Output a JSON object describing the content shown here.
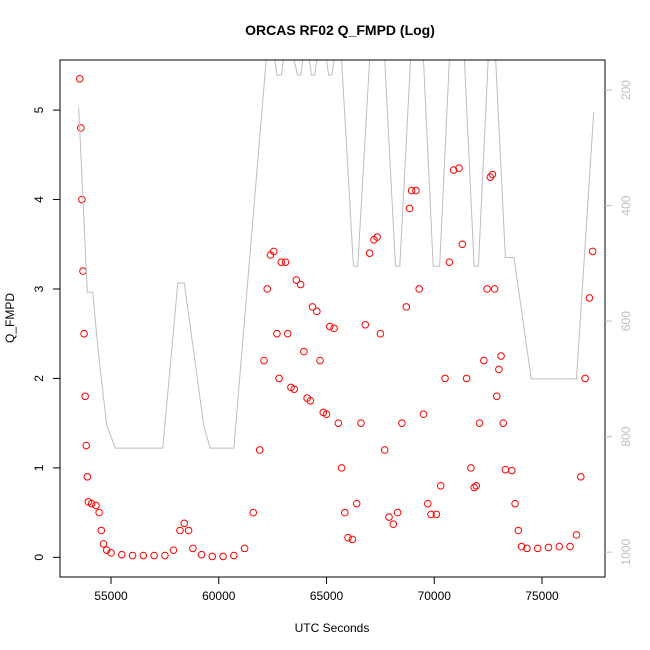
{
  "chart_data": {
    "type": "scatter",
    "title": "ORCAS RF02 Q_FMPD (Log)",
    "x_label": "UTC Seconds",
    "y_label": "Q_FMPD",
    "xlim": [
      52633,
      77923
    ],
    "ylim": [
      -0.22,
      5.56
    ],
    "y2lim": [
      1043,
      148
    ],
    "xticks": [
      55000,
      60000,
      65000,
      70000,
      75000
    ],
    "yticks": [
      0,
      1,
      2,
      3,
      4,
      5
    ],
    "y2ticks": [
      200,
      400,
      600,
      800,
      1000
    ],
    "series": [
      {
        "type": "scatter",
        "color": "#ff0000",
        "x": [
          53550,
          53600,
          53650,
          53700,
          53750,
          53800,
          53850,
          53900,
          53950,
          54100,
          54300,
          54450,
          54550,
          54650,
          54800,
          55000,
          55500,
          56000,
          56500,
          57000,
          57500,
          57900,
          58200,
          58400,
          58600,
          58800,
          59200,
          59700,
          60200,
          60700,
          61200,
          61600,
          61900,
          62100,
          62250,
          62400,
          62550,
          62700,
          62800,
          62900,
          63100,
          63200,
          63350,
          63500,
          63600,
          63800,
          63950,
          64100,
          64250,
          64350,
          64550,
          64700,
          64850,
          65000,
          65150,
          65350,
          65550,
          65700,
          65850,
          66000,
          66200,
          66400,
          66600,
          66800,
          67000,
          67200,
          67350,
          67500,
          67700,
          67900,
          68100,
          68300,
          68500,
          68700,
          68850,
          68950,
          69150,
          69300,
          69500,
          69700,
          69850,
          70100,
          70300,
          70500,
          70700,
          70900,
          71150,
          71300,
          71500,
          71700,
          71850,
          71950,
          72100,
          72300,
          72450,
          72600,
          72700,
          72800,
          72900,
          73000,
          73100,
          73200,
          73300,
          73600,
          73750,
          73900,
          74050,
          74300,
          74800,
          75300,
          75800,
          76300,
          76600,
          76800,
          77000,
          77200,
          77350
        ],
        "values": [
          5.35,
          4.8,
          4.0,
          3.2,
          2.5,
          1.8,
          1.25,
          0.9,
          0.62,
          0.6,
          0.58,
          0.5,
          0.3,
          0.15,
          0.08,
          0.05,
          0.03,
          0.02,
          0.02,
          0.02,
          0.02,
          0.08,
          0.3,
          0.38,
          0.3,
          0.1,
          0.03,
          0.01,
          0.01,
          0.02,
          0.1,
          0.5,
          1.2,
          2.2,
          3.0,
          3.38,
          3.42,
          2.5,
          2.0,
          3.3,
          3.3,
          2.5,
          1.9,
          1.88,
          3.1,
          3.05,
          2.3,
          1.78,
          1.75,
          2.8,
          2.75,
          2.2,
          1.62,
          1.6,
          2.58,
          2.56,
          1.5,
          1.0,
          0.5,
          0.22,
          0.2,
          0.6,
          1.5,
          2.6,
          3.4,
          3.55,
          3.58,
          2.5,
          1.2,
          0.45,
          0.37,
          0.5,
          1.5,
          2.8,
          3.9,
          4.1,
          4.1,
          3.0,
          1.6,
          0.6,
          0.48,
          0.48,
          0.8,
          2.0,
          3.3,
          4.33,
          4.35,
          3.5,
          2.0,
          1.0,
          0.78,
          0.8,
          1.5,
          2.2,
          3.0,
          4.25,
          4.28,
          3.0,
          1.8,
          2.1,
          2.25,
          1.5,
          0.98,
          0.97,
          0.6,
          0.3,
          0.12,
          0.1,
          0.1,
          0.11,
          0.12,
          0.12,
          0.25,
          0.9,
          2.0,
          2.9,
          3.42
        ]
      },
      {
        "type": "line",
        "color": "#bebebe",
        "axis": "y2",
        "x": [
          53500,
          53900,
          54150,
          54400,
          54800,
          55200,
          57400,
          58100,
          58400,
          59300,
          59600,
          60700,
          62200,
          62600,
          62700,
          62900,
          63000,
          63500,
          63650,
          63800,
          63900,
          64200,
          64300,
          64450,
          64550,
          65000,
          65100,
          65250,
          65350,
          65700,
          66250,
          66450,
          67000,
          67700,
          68200,
          68400,
          68900,
          69500,
          69950,
          70250,
          70700,
          71400,
          71850,
          72050,
          72500,
          72850,
          73300,
          73700,
          74500,
          76600,
          77400
        ],
        "values": [
          230,
          550,
          550,
          650,
          780,
          820,
          820,
          534,
          534,
          780,
          820,
          820,
          148,
          148,
          174,
          174,
          148,
          148,
          174,
          174,
          148,
          148,
          174,
          174,
          148,
          148,
          174,
          174,
          148,
          148,
          505,
          505,
          148,
          148,
          505,
          505,
          148,
          148,
          505,
          505,
          148,
          148,
          505,
          505,
          148,
          148,
          490,
          490,
          700,
          700,
          238
        ]
      }
    ]
  }
}
